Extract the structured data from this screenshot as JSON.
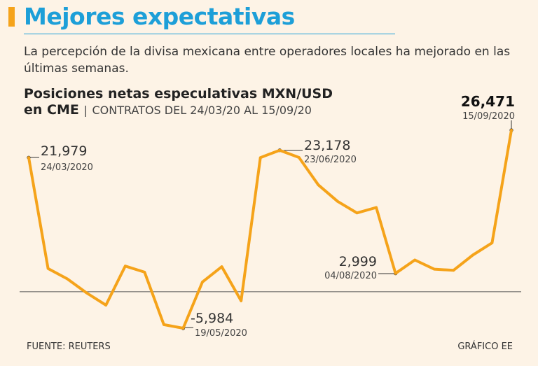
{
  "header": {
    "title": "Mejores expectativas",
    "subtitle": "La percepción de la divisa mexicana entre operadores locales ha mejorado en las últimas semanas."
  },
  "colors": {
    "accent": "#f5a31a",
    "title": "#1d9fd8",
    "line": "#f5a31a",
    "background": "#fdf3e6"
  },
  "chart_data": {
    "type": "line",
    "title_line1": "Posiciones netas especulativas MXN/USD",
    "title_line2": "en CME",
    "separator": "|",
    "date_range": "CONTRATOS DEL 24/03/20 AL 15/09/20",
    "ylabel": "",
    "xlabel": "",
    "ylim": [
      -8000,
      28000
    ],
    "baseline": 0,
    "series": [
      {
        "name": "Posiciones netas",
        "values": [
          21979,
          3800,
          2100,
          -200,
          -2200,
          4200,
          3200,
          -5400,
          -5984,
          1600,
          4100,
          -1500,
          21979,
          23178,
          22000,
          17500,
          14800,
          12900,
          13800,
          2999,
          5200,
          3700,
          3500,
          6000,
          8000,
          26471
        ]
      }
    ],
    "annotations": [
      {
        "index": 0,
        "value": "21,979",
        "date": "24/03/2020"
      },
      {
        "index": 8,
        "value": "-5,984",
        "date": "19/05/2020"
      },
      {
        "index": 13,
        "value": "23,178",
        "date": "23/06/2020"
      },
      {
        "index": 19,
        "value": "2,999",
        "date": "04/08/2020"
      },
      {
        "index": 25,
        "value": "26,471",
        "date": "15/09/2020"
      }
    ]
  },
  "footer": {
    "source": "FUENTE: REUTERS",
    "credit": "GRÁFICO EE"
  }
}
